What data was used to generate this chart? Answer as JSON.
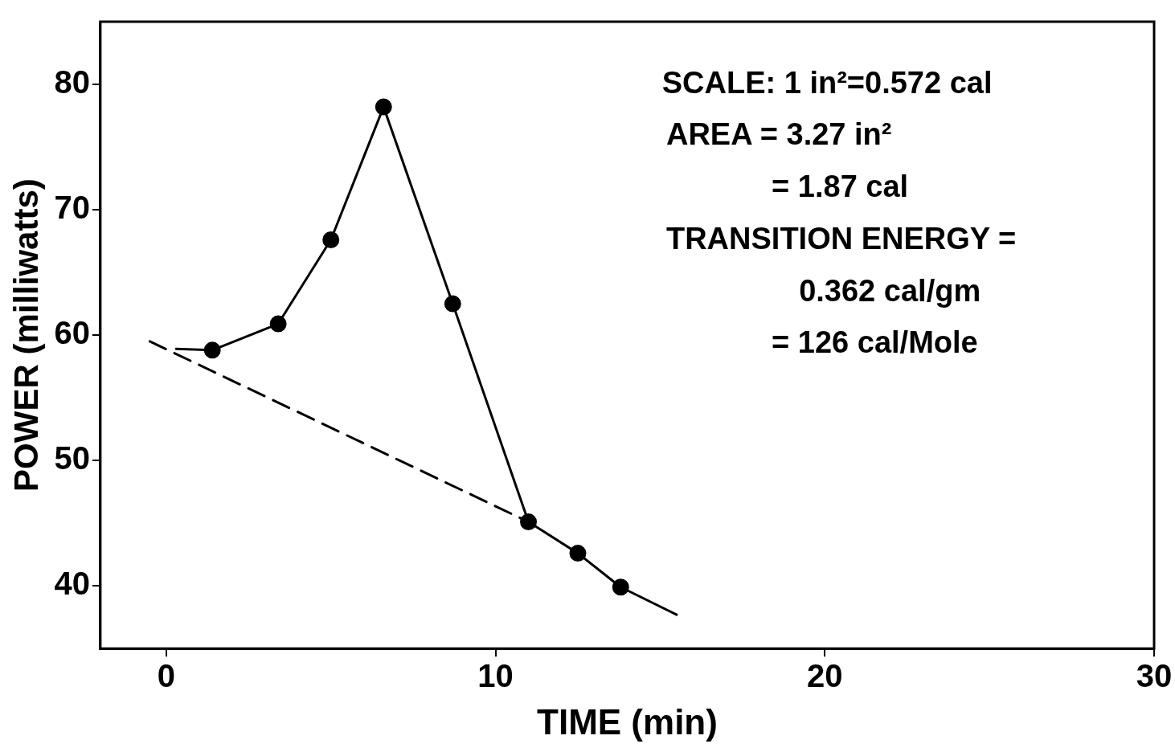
{
  "chart_data": {
    "type": "line",
    "xlabel": "TIME (min)",
    "ylabel": "POWER (milliwatts)",
    "xlim": [
      -2,
      30
    ],
    "ylim": [
      35,
      85
    ],
    "xticks": [
      0,
      10,
      20,
      30
    ],
    "yticks": [
      40,
      50,
      60,
      70,
      80
    ],
    "grid": false,
    "legend": false,
    "series": [
      {
        "type": "scatter",
        "color": "#000000",
        "marker": "circle",
        "x": [
          1.4,
          3.4,
          5.0,
          6.6,
          8.7,
          11.0,
          12.5,
          13.8
        ],
        "values": [
          58.8,
          60.9,
          67.6,
          78.2,
          62.5,
          45.1,
          42.6,
          39.9
        ]
      },
      {
        "type": "line",
        "color": "#000000",
        "marker": "none",
        "line_style": "solid",
        "x": [
          0.3,
          1.4,
          3.4,
          5.0,
          6.6
        ],
        "values": [
          58.9,
          58.8,
          60.9,
          67.6,
          78.2
        ]
      },
      {
        "type": "line",
        "color": "#000000",
        "marker": "none",
        "line_style": "solid",
        "x": [
          6.6,
          8.7,
          11.0,
          12.5,
          13.8,
          15.5
        ],
        "values": [
          78.2,
          62.5,
          45.1,
          42.6,
          39.9,
          37.7
        ]
      },
      {
        "type": "line",
        "color": "#000000",
        "marker": "none",
        "line_style": "dashed",
        "x": [
          -0.5,
          11.0
        ],
        "values": [
          59.5,
          45.1
        ]
      }
    ],
    "annotations": [
      "SCALE: 1 in²=0.572 cal",
      "AREA = 3.27 in²",
      "= 1.87 cal",
      "TRANSITION ENERGY =",
      "0.362 cal/gm",
      "= 126 cal/Mole"
    ]
  }
}
